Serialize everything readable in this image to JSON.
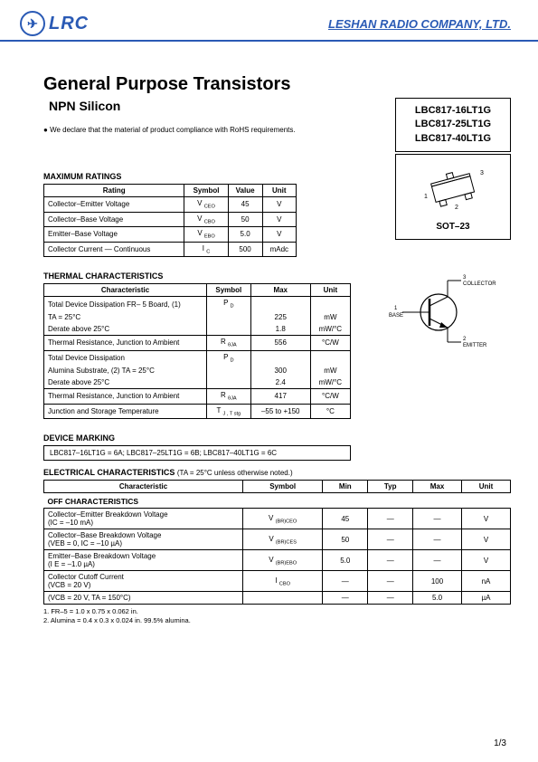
{
  "header": {
    "logo_text": "LRC",
    "logo_glyph": "✈",
    "company": "LESHAN RADIO COMPANY, LTD."
  },
  "title": "General Purpose Transistors",
  "subtitle": "NPN Silicon",
  "rohs_statement": "We declare that the material of product compliance with RoHS requirements.",
  "part_numbers": [
    "LBC817-16LT1G",
    "LBC817-25LT1G",
    "LBC817-40LT1G"
  ],
  "package_label": "SOT–23",
  "pin_labels": {
    "p1": "1",
    "p2": "2",
    "p3": "3"
  },
  "transistor_labels": {
    "c": "COLLECTOR",
    "b": "BASE",
    "e": "EMITTER",
    "p1": "1",
    "p2": "2",
    "p3": "3"
  },
  "max_ratings": {
    "title": "MAXIMUM RATINGS",
    "columns": [
      "Rating",
      "Symbol",
      "Value",
      "Unit"
    ],
    "rows": [
      [
        "Collector–Emitter Voltage",
        "V CEO",
        "45",
        "V"
      ],
      [
        "Collector–Base Voltage",
        "V CBO",
        "50",
        "V"
      ],
      [
        "Emitter–Base Voltage",
        "V EBO",
        "5.0",
        "V"
      ],
      [
        "Collector Current — Continuous",
        "I C",
        "500",
        "mAdc"
      ]
    ]
  },
  "thermal": {
    "title": "THERMAL CHARACTERISTICS",
    "columns": [
      "Characteristic",
      "Symbol",
      "Max",
      "Unit"
    ],
    "rows": [
      [
        "Total Device Dissipation FR– 5 Board, (1)",
        "P D",
        "",
        ""
      ],
      [
        "TA = 25°C",
        "",
        "225",
        "mW"
      ],
      [
        "Derate above 25°C",
        "",
        "1.8",
        "mW/°C"
      ],
      [
        "Thermal Resistance, Junction to Ambient",
        "R θJA",
        "556",
        "°C/W"
      ],
      [
        "Total Device Dissipation",
        "P D",
        "",
        ""
      ],
      [
        "Alumina Substrate, (2) TA = 25°C",
        "",
        "300",
        "mW"
      ],
      [
        "Derate above 25°C",
        "",
        "2.4",
        "mW/°C"
      ],
      [
        "Thermal Resistance, Junction to Ambient",
        "R θJA",
        "417",
        "°C/W"
      ],
      [
        "Junction and Storage Temperature",
        "T J , T stg",
        "–55 to +150",
        "°C"
      ]
    ]
  },
  "marking": {
    "title": "DEVICE MARKING",
    "text": "LBC817–16LT1G = 6A; LBC817–25LT1G = 6B; LBC817–40LT1G = 6C"
  },
  "electrical": {
    "title": "ELECTRICAL CHARACTERISTICS",
    "note": "(TA = 25°C unless otherwise noted.)",
    "columns": [
      "Characteristic",
      "Symbol",
      "Min",
      "Typ",
      "Max",
      "Unit"
    ],
    "off_title": "OFF CHARACTERISTICS",
    "rows": [
      {
        "l1": "Collector–Emitter Breakdown Voltage",
        "l2": "(IC = –10 mA)",
        "sym": "V (BR)CEO",
        "min": "45",
        "typ": "—",
        "max": "—",
        "unit": "V"
      },
      {
        "l1": "Collector–Base Breakdown Voltage",
        "l2": "(VEB = 0, IC = –10 µA)",
        "sym": "V (BR)CES",
        "min": "50",
        "typ": "—",
        "max": "—",
        "unit": "V"
      },
      {
        "l1": "Emitter–Base Breakdown Voltage",
        "l2": "(I E = –1.0 µA)",
        "sym": "V (BR)EBO",
        "min": "5.0",
        "typ": "—",
        "max": "—",
        "unit": "V"
      },
      {
        "l1": "Collector Cutoff Current",
        "l2": "(VCB = 20 V)",
        "sym": "I CBO",
        "min": "—",
        "typ": "—",
        "max": "100",
        "unit": "nA"
      },
      {
        "l1": "(VCB = 20 V, TA = 150°C)",
        "l2": "",
        "sym": "",
        "min": "—",
        "typ": "—",
        "max": "5.0",
        "unit": "µA"
      }
    ]
  },
  "footnotes": [
    "1. FR–5 = 1.0 x 0.75 x 0.062 in.",
    "2. Alumina = 0.4 x 0.3 x 0.024 in. 99.5% alumina."
  ],
  "page": "1/3",
  "colors": {
    "brand": "#2a5ab5",
    "text": "#000000",
    "bg": "#ffffff"
  }
}
